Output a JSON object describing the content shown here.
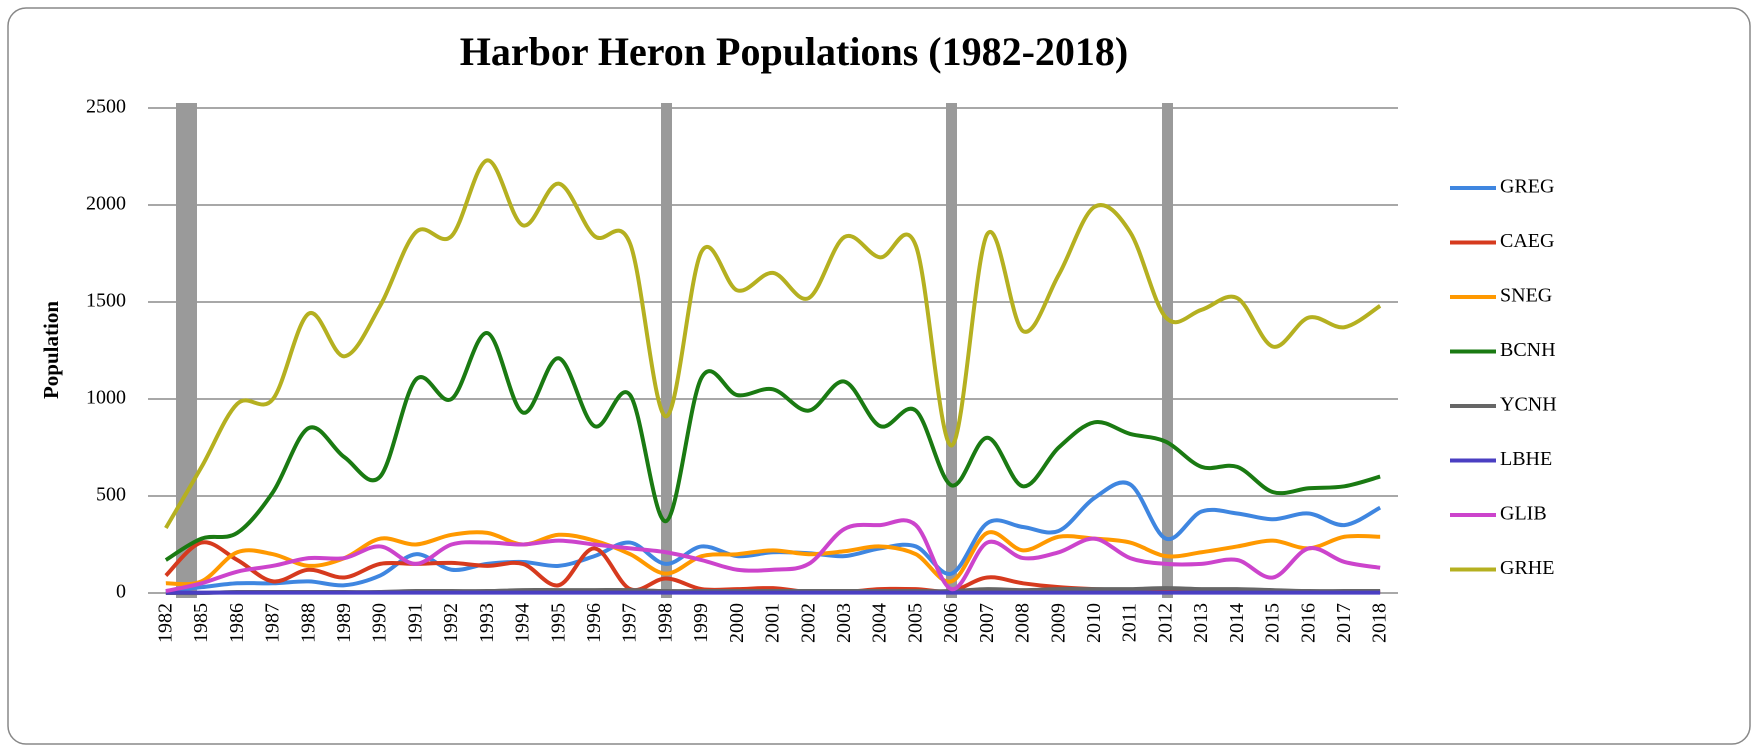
{
  "chart_data": {
    "type": "line",
    "title": "Harbor Heron Populations (1982-2018)",
    "y_label": "Population",
    "categories": [
      "1982",
      "1985",
      "1986",
      "1987",
      "1988",
      "1989",
      "1990",
      "1991",
      "1992",
      "1993",
      "1994",
      "1995",
      "1996",
      "1997",
      "1998",
      "1999",
      "2000",
      "2001",
      "2002",
      "2003",
      "2004",
      "2005",
      "2006",
      "2007",
      "2008",
      "2009",
      "2010",
      "2011",
      "2012",
      "2013",
      "2014",
      "2015",
      "2016",
      "2017",
      "2018"
    ],
    "ylim": [
      0,
      2500
    ],
    "yticks": [
      0,
      500,
      1000,
      1500,
      2000,
      2500
    ],
    "grid": true,
    "legend": "right",
    "smooth": true,
    "series": [
      {
        "name": "GREG",
        "color": "#3f86e0",
        "values": [
          10,
          30,
          50,
          50,
          60,
          40,
          90,
          200,
          120,
          150,
          160,
          140,
          190,
          260,
          150,
          240,
          190,
          210,
          205,
          190,
          230,
          240,
          100,
          360,
          340,
          320,
          490,
          560,
          280,
          420,
          410,
          380,
          410,
          350,
          440
        ]
      },
      {
        "name": "CAEG",
        "color": "#d63a1e",
        "values": [
          90,
          260,
          170,
          60,
          120,
          80,
          150,
          150,
          155,
          140,
          150,
          40,
          230,
          20,
          75,
          20,
          20,
          25,
          5,
          5,
          20,
          20,
          10,
          80,
          50,
          30,
          20,
          15,
          10,
          10,
          10,
          5,
          5,
          5,
          5
        ]
      },
      {
        "name": "SNEG",
        "color": "#ff9900",
        "values": [
          50,
          60,
          210,
          200,
          140,
          180,
          280,
          250,
          300,
          310,
          250,
          300,
          270,
          200,
          100,
          190,
          200,
          220,
          200,
          215,
          240,
          200,
          60,
          310,
          220,
          290,
          280,
          260,
          190,
          210,
          240,
          270,
          230,
          290,
          290
        ]
      },
      {
        "name": "BCNH",
        "color": "#1a7a12",
        "values": [
          170,
          280,
          310,
          520,
          850,
          700,
          600,
          1100,
          1000,
          1340,
          930,
          1210,
          860,
          1020,
          370,
          1110,
          1020,
          1050,
          940,
          1090,
          860,
          940,
          555,
          800,
          550,
          750,
          880,
          820,
          780,
          650,
          650,
          520,
          540,
          550,
          600
        ]
      },
      {
        "name": "YCNH",
        "color": "#666666",
        "values": [
          0,
          0,
          5,
          5,
          5,
          5,
          5,
          10,
          10,
          10,
          15,
          15,
          15,
          15,
          10,
          10,
          10,
          10,
          10,
          10,
          10,
          10,
          10,
          20,
          15,
          20,
          20,
          20,
          25,
          20,
          20,
          15,
          10,
          10,
          10
        ]
      },
      {
        "name": "LBHE",
        "color": "#4a3fc2",
        "values": [
          2,
          2,
          2,
          2,
          2,
          2,
          2,
          2,
          2,
          2,
          2,
          2,
          2,
          2,
          2,
          2,
          2,
          2,
          2,
          2,
          2,
          2,
          2,
          2,
          2,
          2,
          2,
          2,
          2,
          2,
          2,
          2,
          2,
          2,
          2
        ]
      },
      {
        "name": "GLIB",
        "color": "#cc44cc",
        "values": [
          10,
          50,
          110,
          140,
          180,
          180,
          240,
          150,
          250,
          260,
          250,
          270,
          250,
          230,
          210,
          170,
          120,
          120,
          150,
          330,
          350,
          350,
          20,
          260,
          180,
          210,
          280,
          180,
          150,
          150,
          170,
          80,
          230,
          160,
          130
        ]
      },
      {
        "name": "GRHE",
        "color": "#b5b020",
        "values": [
          335,
          650,
          975,
          1000,
          1440,
          1220,
          1480,
          1860,
          1840,
          2230,
          1895,
          2110,
          1840,
          1800,
          910,
          1760,
          1560,
          1650,
          1520,
          1835,
          1730,
          1790,
          760,
          1850,
          1350,
          1640,
          1990,
          1860,
          1420,
          1460,
          1520,
          1270,
          1420,
          1370,
          1480
        ]
      }
    ]
  }
}
